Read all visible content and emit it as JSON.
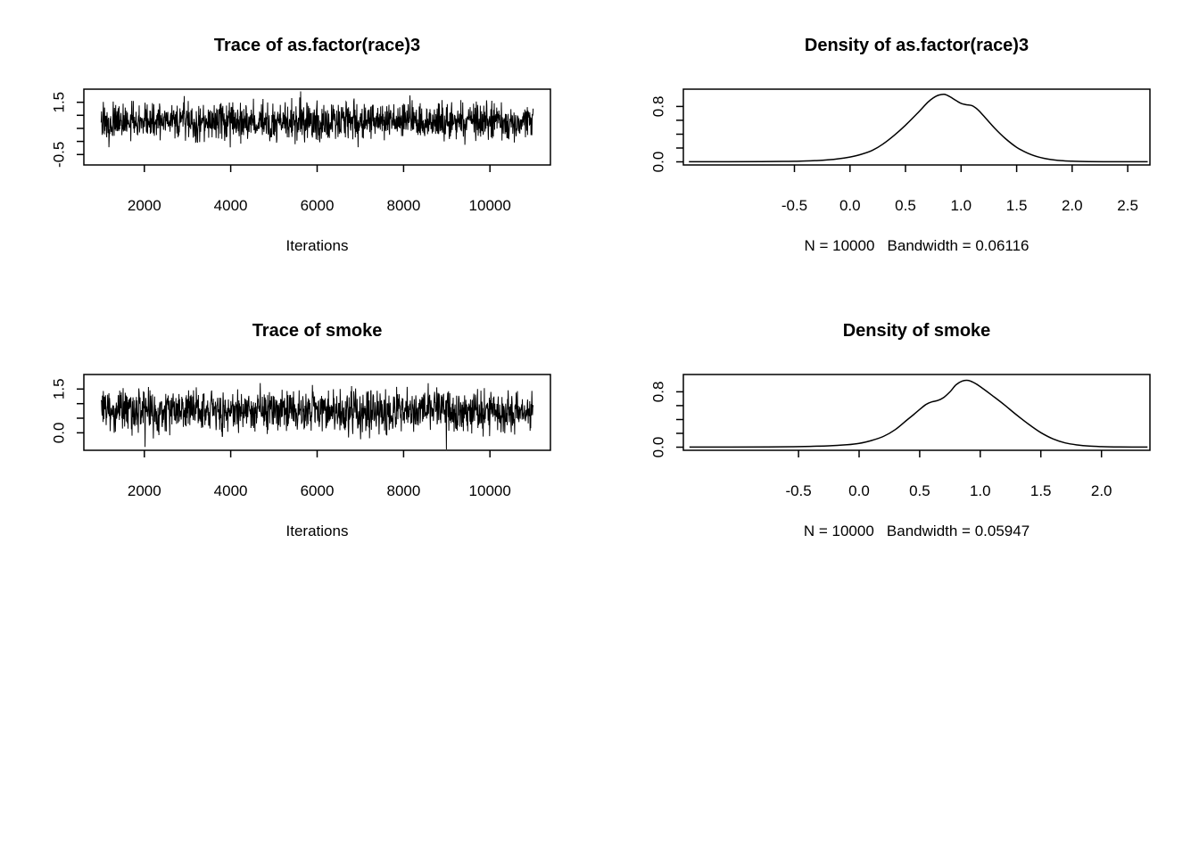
{
  "chart_data": [
    {
      "type": "line",
      "kind": "trace",
      "title": "Trace of as.factor(race)3",
      "xlabel": "Iterations",
      "ylabel": "",
      "sub_label": "",
      "xlim": [
        600,
        11400
      ],
      "ylim": [
        -0.9,
        2.0
      ],
      "x_ticks": [
        {
          "v": 2000,
          "label": "2000"
        },
        {
          "v": 4000,
          "label": "4000"
        },
        {
          "v": 6000,
          "label": "6000"
        },
        {
          "v": 8000,
          "label": "8000"
        },
        {
          "v": 10000,
          "label": "10000"
        }
      ],
      "y_ticks": [
        {
          "v": -0.5,
          "label": "-0.5"
        },
        {
          "v": 0.0,
          "label": ""
        },
        {
          "v": 0.5,
          "label": ""
        },
        {
          "v": 1.0,
          "label": ""
        },
        {
          "v": 1.5,
          "label": "1.5"
        }
      ],
      "trace": {
        "mean": 0.75,
        "spread": 0.7,
        "n": 1400,
        "seed": 123,
        "x_start": 1001,
        "x_end": 11000
      }
    },
    {
      "type": "line",
      "kind": "density",
      "title": "Density of as.factor(race)3",
      "xlabel": "",
      "ylabel": "",
      "sub_label": "N = 10000   Bandwidth = 0.06116",
      "n_samples": 10000,
      "bandwidth": 0.06116,
      "xlim": [
        -1.5,
        2.7
      ],
      "ylim": [
        -0.045,
        1.05
      ],
      "x_ticks": [
        {
          "v": -0.5,
          "label": "-0.5"
        },
        {
          "v": 0.0,
          "label": "0.0"
        },
        {
          "v": 0.5,
          "label": "0.5"
        },
        {
          "v": 1.0,
          "label": "1.0"
        },
        {
          "v": 1.5,
          "label": "1.5"
        },
        {
          "v": 2.0,
          "label": "2.0"
        },
        {
          "v": 2.5,
          "label": "2.5"
        }
      ],
      "y_ticks": [
        {
          "v": 0.0,
          "label": "0.0"
        },
        {
          "v": 0.2,
          "label": ""
        },
        {
          "v": 0.4,
          "label": ""
        },
        {
          "v": 0.6,
          "label": ""
        },
        {
          "v": 0.8,
          "label": "0.8"
        }
      ],
      "density_points": [
        [
          -1.45,
          0.001
        ],
        [
          -1.1,
          0.002
        ],
        [
          -0.8,
          0.004
        ],
        [
          -0.6,
          0.006
        ],
        [
          -0.45,
          0.01
        ],
        [
          -0.3,
          0.018
        ],
        [
          -0.2,
          0.028
        ],
        [
          -0.1,
          0.045
        ],
        [
          0,
          0.07
        ],
        [
          0.1,
          0.108
        ],
        [
          0.2,
          0.165
        ],
        [
          0.3,
          0.26
        ],
        [
          0.4,
          0.385
        ],
        [
          0.5,
          0.53
        ],
        [
          0.6,
          0.69
        ],
        [
          0.7,
          0.86
        ],
        [
          0.75,
          0.925
        ],
        [
          0.8,
          0.965
        ],
        [
          0.85,
          0.975
        ],
        [
          0.9,
          0.94
        ],
        [
          0.95,
          0.89
        ],
        [
          1.0,
          0.845
        ],
        [
          1.05,
          0.825
        ],
        [
          1.1,
          0.81
        ],
        [
          1.15,
          0.755
        ],
        [
          1.2,
          0.67
        ],
        [
          1.3,
          0.49
        ],
        [
          1.4,
          0.335
        ],
        [
          1.5,
          0.21
        ],
        [
          1.6,
          0.125
        ],
        [
          1.7,
          0.068
        ],
        [
          1.8,
          0.036
        ],
        [
          1.9,
          0.018
        ],
        [
          2.0,
          0.009
        ],
        [
          2.15,
          0.004
        ],
        [
          2.35,
          0.002
        ],
        [
          2.55,
          0.001
        ],
        [
          2.68,
          0.001
        ]
      ]
    },
    {
      "type": "line",
      "kind": "trace",
      "title": "Trace of smoke",
      "xlabel": "Iterations",
      "ylabel": "",
      "sub_label": "",
      "xlim": [
        600,
        11400
      ],
      "ylim": [
        -0.6,
        2.0
      ],
      "x_ticks": [
        {
          "v": 2000,
          "label": "2000"
        },
        {
          "v": 4000,
          "label": "4000"
        },
        {
          "v": 6000,
          "label": "6000"
        },
        {
          "v": 8000,
          "label": "8000"
        },
        {
          "v": 10000,
          "label": "10000"
        }
      ],
      "y_ticks": [
        {
          "v": 0.0,
          "label": "0.0"
        },
        {
          "v": 0.5,
          "label": ""
        },
        {
          "v": 1.0,
          "label": ""
        },
        {
          "v": 1.5,
          "label": "1.5"
        }
      ],
      "trace": {
        "mean": 0.75,
        "spread": 0.7,
        "n": 1400,
        "seed": 456,
        "x_start": 1001,
        "x_end": 11000
      }
    },
    {
      "type": "line",
      "kind": "density",
      "title": "Density of smoke",
      "xlabel": "",
      "ylabel": "",
      "sub_label": "N = 10000   Bandwidth = 0.05947",
      "n_samples": 10000,
      "bandwidth": 0.05947,
      "xlim": [
        -1.45,
        2.4
      ],
      "ylim": [
        -0.045,
        1.05
      ],
      "x_ticks": [
        {
          "v": -0.5,
          "label": "-0.5"
        },
        {
          "v": 0.0,
          "label": "0.0"
        },
        {
          "v": 0.5,
          "label": "0.5"
        },
        {
          "v": 1.0,
          "label": "1.0"
        },
        {
          "v": 1.5,
          "label": "1.5"
        },
        {
          "v": 2.0,
          "label": "2.0"
        }
      ],
      "y_ticks": [
        {
          "v": 0.0,
          "label": "0.0"
        },
        {
          "v": 0.2,
          "label": ""
        },
        {
          "v": 0.4,
          "label": ""
        },
        {
          "v": 0.6,
          "label": ""
        },
        {
          "v": 0.8,
          "label": "0.8"
        }
      ],
      "density_points": [
        [
          -1.4,
          0.001
        ],
        [
          -1.05,
          0.002
        ],
        [
          -0.75,
          0.004
        ],
        [
          -0.55,
          0.007
        ],
        [
          -0.4,
          0.012
        ],
        [
          -0.25,
          0.02
        ],
        [
          -0.1,
          0.035
        ],
        [
          0,
          0.055
        ],
        [
          0.1,
          0.095
        ],
        [
          0.2,
          0.155
        ],
        [
          0.3,
          0.255
        ],
        [
          0.4,
          0.4
        ],
        [
          0.45,
          0.47
        ],
        [
          0.5,
          0.545
        ],
        [
          0.55,
          0.615
        ],
        [
          0.6,
          0.655
        ],
        [
          0.65,
          0.675
        ],
        [
          0.7,
          0.72
        ],
        [
          0.75,
          0.8
        ],
        [
          0.8,
          0.9
        ],
        [
          0.85,
          0.955
        ],
        [
          0.9,
          0.965
        ],
        [
          0.95,
          0.93
        ],
        [
          1.0,
          0.875
        ],
        [
          1.1,
          0.745
        ],
        [
          1.2,
          0.61
        ],
        [
          1.3,
          0.465
        ],
        [
          1.4,
          0.33
        ],
        [
          1.5,
          0.21
        ],
        [
          1.6,
          0.12
        ],
        [
          1.7,
          0.062
        ],
        [
          1.8,
          0.032
        ],
        [
          1.9,
          0.016
        ],
        [
          2.0,
          0.008
        ],
        [
          2.15,
          0.003
        ],
        [
          2.38,
          0.001
        ]
      ]
    }
  ]
}
